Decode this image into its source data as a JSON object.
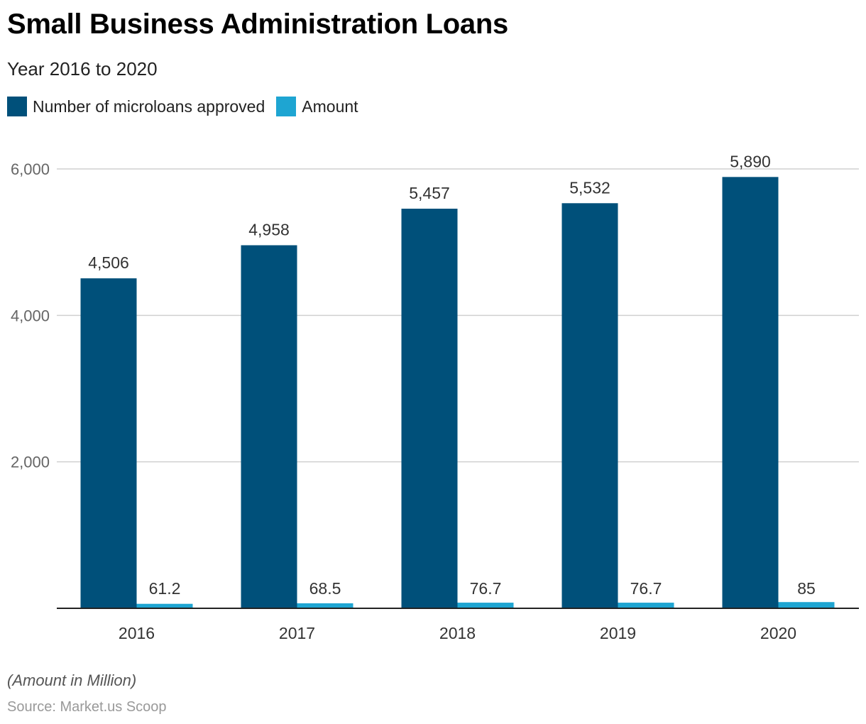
{
  "chart_data": {
    "type": "bar",
    "title": "Small Business Administration Loans",
    "subtitle": "Year 2016 to 2020",
    "categories": [
      "2016",
      "2017",
      "2018",
      "2019",
      "2020"
    ],
    "series": [
      {
        "name": "Number of microloans approved",
        "values": [
          4506,
          4958,
          5457,
          5532,
          5890
        ],
        "labels": [
          "4,506",
          "4,958",
          "5,457",
          "5,532",
          "5,890"
        ],
        "color": "#00507a"
      },
      {
        "name": "Amount",
        "values": [
          61.2,
          68.5,
          76.7,
          76.7,
          85
        ],
        "labels": [
          "61.2",
          "68.5",
          "76.7",
          "76.7",
          "85"
        ],
        "color": "#1ea5d2"
      }
    ],
    "yticks": [
      2000,
      4000,
      6000
    ],
    "ytick_labels": [
      "2,000",
      "4,000",
      "6,000"
    ],
    "ylim": [
      0,
      6000
    ],
    "grid": true,
    "legend": "top-left",
    "xlabel": "",
    "ylabel": ""
  },
  "note": "(Amount in Million)",
  "source": "Source: Market.us Scoop"
}
